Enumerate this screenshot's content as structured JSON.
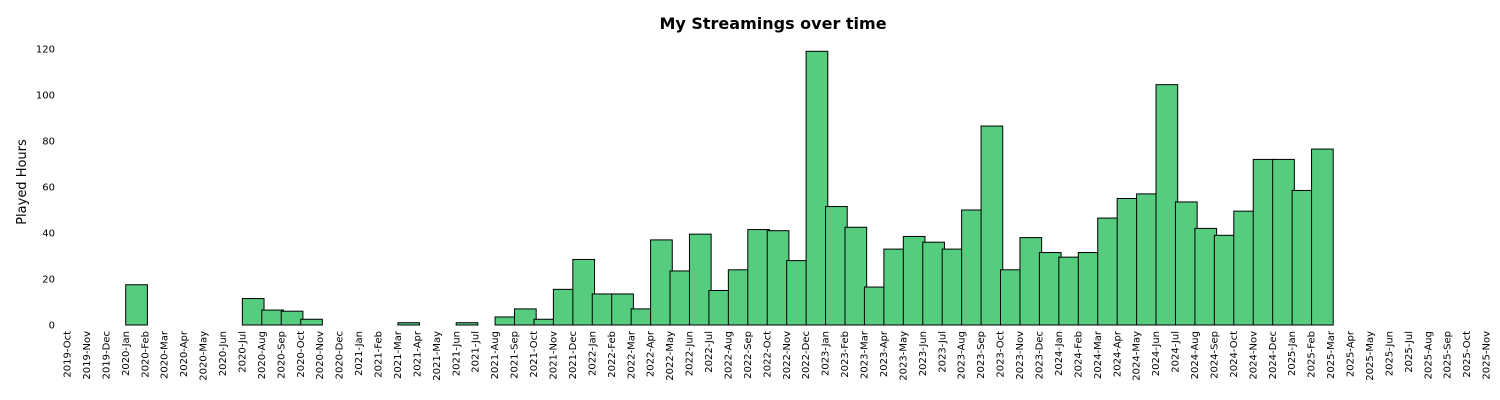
{
  "chart_data": {
    "type": "bar",
    "title": "My Streamings over time",
    "xlabel": "",
    "ylabel": "Played Hours",
    "ylim": [
      0,
      120
    ],
    "yticks": [
      0,
      20,
      40,
      60,
      80,
      100,
      120
    ],
    "grid": false,
    "bar_color": "#55cc7e",
    "edge_color": "#000000",
    "categories": [
      "2019-Oct",
      "2019-Nov",
      "2019-Dec",
      "2020-Jan",
      "2020-Feb",
      "2020-Mar",
      "2020-Apr",
      "2020-May",
      "2020-Jun",
      "2020-Jul",
      "2020-Aug",
      "2020-Sep",
      "2020-Oct",
      "2020-Nov",
      "2020-Dec",
      "2021-Jan",
      "2021-Feb",
      "2021-Mar",
      "2021-Apr",
      "2021-May",
      "2021-Jun",
      "2021-Jul",
      "2021-Aug",
      "2021-Sep",
      "2021-Oct",
      "2021-Nov",
      "2021-Dec",
      "2022-Jan",
      "2022-Feb",
      "2022-Mar",
      "2022-Apr",
      "2022-May",
      "2022-Jun",
      "2022-Jul",
      "2022-Aug",
      "2022-Sep",
      "2022-Oct",
      "2022-Nov",
      "2022-Dec",
      "2023-Jan",
      "2023-Feb",
      "2023-Mar",
      "2023-Apr",
      "2023-May",
      "2023-Jun",
      "2023-Jul",
      "2023-Aug",
      "2023-Sep",
      "2023-Oct",
      "2023-Nov",
      "2023-Dec",
      "2024-Jan",
      "2024-Feb",
      "2024-Mar",
      "2024-Apr",
      "2024-May",
      "2024-Jun",
      "2024-Jul",
      "2024-Aug",
      "2024-Sep",
      "2024-Oct",
      "2024-Nov",
      "2024-Dec",
      "2025-Jan",
      "2025-Feb",
      "2025-Mar",
      "2025-Apr",
      "2025-May",
      "2025-Jun",
      "2025-Jul",
      "2025-Aug",
      "2025-Sep",
      "2025-Oct",
      "2025-Nov"
    ],
    "bars": [
      {
        "start": "2020-Jan",
        "value": 17.5
      },
      {
        "start": "2020-Jul",
        "value": 11.5
      },
      {
        "start": "2020-Aug",
        "value": 6.5
      },
      {
        "start": "2020-Sep",
        "value": 6
      },
      {
        "start": "2020-Oct",
        "value": 2.5
      },
      {
        "start": "2021-Mar",
        "value": 1
      },
      {
        "start": "2021-Jun",
        "value": 1
      },
      {
        "start": "2021-Aug",
        "value": 3.5
      },
      {
        "start": "2021-Sep",
        "value": 7
      },
      {
        "start": "2021-Oct",
        "value": 2.5
      },
      {
        "start": "2021-Nov",
        "value": 15.5
      },
      {
        "start": "2021-Dec",
        "value": 28.5
      },
      {
        "start": "2022-Jan",
        "value": 13.5
      },
      {
        "start": "2022-Feb",
        "value": 13.5
      },
      {
        "start": "2022-Mar",
        "value": 7
      },
      {
        "start": "2022-Apr",
        "value": 37
      },
      {
        "start": "2022-May",
        "value": 23.5
      },
      {
        "start": "2022-Jun",
        "value": 39.5
      },
      {
        "start": "2022-Jul",
        "value": 15
      },
      {
        "start": "2022-Aug",
        "value": 24
      },
      {
        "start": "2022-Sep",
        "value": 41.5
      },
      {
        "start": "2022-Oct",
        "value": 41
      },
      {
        "start": "2022-Nov",
        "value": 28
      },
      {
        "start": "2022-Dec",
        "value": 119
      },
      {
        "start": "2023-Jan",
        "value": 51.5
      },
      {
        "start": "2023-Feb",
        "value": 42.5
      },
      {
        "start": "2023-Mar",
        "value": 16.5
      },
      {
        "start": "2023-Apr",
        "value": 33
      },
      {
        "start": "2023-May",
        "value": 38.5
      },
      {
        "start": "2023-Jun",
        "value": 36
      },
      {
        "start": "2023-Jul",
        "value": 33
      },
      {
        "start": "2023-Aug",
        "value": 50
      },
      {
        "start": "2023-Sep",
        "value": 86.5
      },
      {
        "start": "2023-Oct",
        "value": 24
      },
      {
        "start": "2023-Nov",
        "value": 38
      },
      {
        "start": "2023-Dec",
        "value": 31.5
      },
      {
        "start": "2024-Jan",
        "value": 29.5
      },
      {
        "start": "2024-Feb",
        "value": 31.5
      },
      {
        "start": "2024-Mar",
        "value": 46.5
      },
      {
        "start": "2024-Apr",
        "value": 55
      },
      {
        "start": "2024-May",
        "value": 57
      },
      {
        "start": "2024-Jun",
        "value": 104.5
      },
      {
        "start": "2024-Jul",
        "value": 53.5
      },
      {
        "start": "2024-Aug",
        "value": 42
      },
      {
        "start": "2024-Sep",
        "value": 39
      },
      {
        "start": "2024-Oct",
        "value": 49.5
      },
      {
        "start": "2024-Nov",
        "value": 72
      },
      {
        "start": "2024-Dec",
        "value": 72
      },
      {
        "start": "2025-Jan",
        "value": 58.5
      },
      {
        "start": "2025-Feb",
        "value": 76.5
      }
    ]
  }
}
